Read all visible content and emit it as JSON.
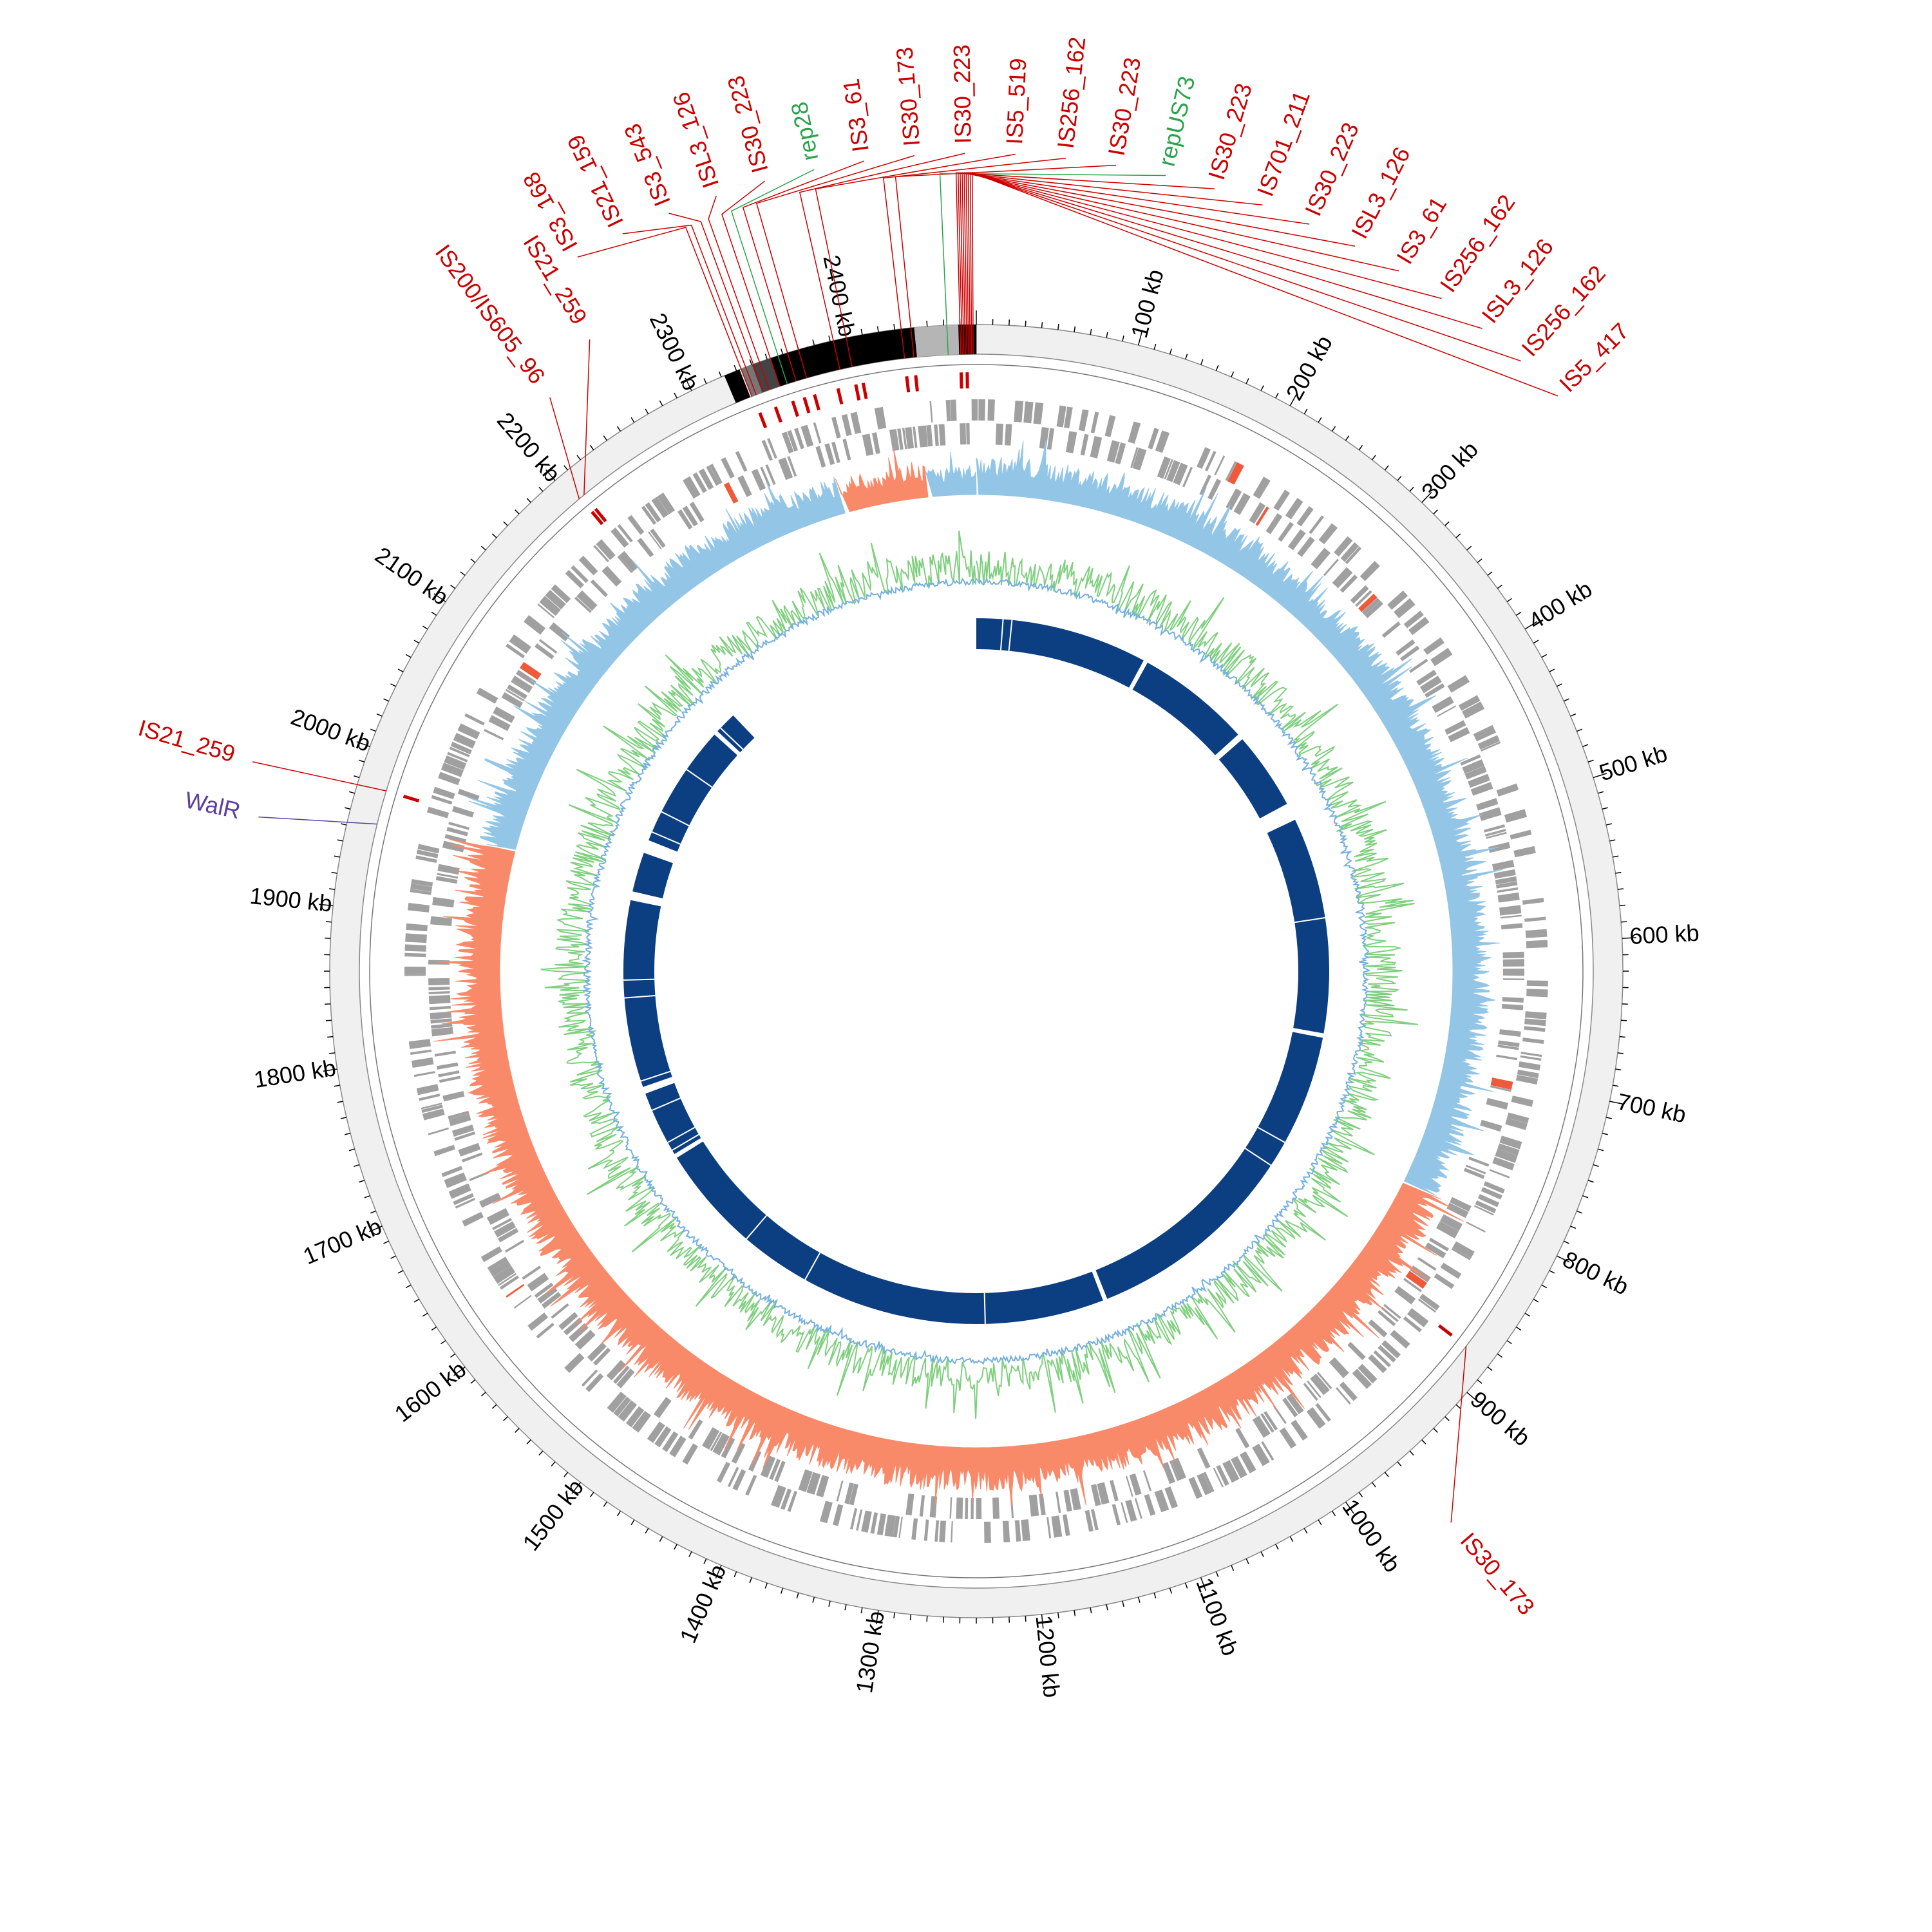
{
  "figure": {
    "type": "circular-genome-map",
    "genome_length_kb": 2480
  },
  "colors": {
    "is_label": "#cc0000",
    "rep_label": "#2aa34a",
    "walr_label": "#5b3f9e",
    "backbone_fill": "#f0f0f0",
    "cds_gray": "#a0a0a0",
    "cds_highlight": "#ef5a3a",
    "gc_skew_pos": "#93c6e6",
    "gc_skew_neg": "#f88a6a",
    "gc_content_pos": "#7fcf7f",
    "gc_content_neg": "#73afe0",
    "blast_ring": "#0b3f82",
    "black": "#000000"
  },
  "scale": {
    "ticks_kb": [
      100,
      200,
      300,
      400,
      500,
      600,
      700,
      800,
      900,
      1000,
      1100,
      1200,
      1300,
      1400,
      1500,
      1600,
      1700,
      1800,
      1900,
      2000,
      2100,
      2200,
      2300,
      2400
    ],
    "unit": "kb"
  },
  "features": [
    {
      "label": "IS3_168",
      "kb": 2333,
      "kind": "is"
    },
    {
      "label": "IS21_159",
      "kb": 2336,
      "kind": "is"
    },
    {
      "label": "IS3_543",
      "kb": 2341,
      "kind": "is"
    },
    {
      "label": "ISL3_126",
      "kb": 2345,
      "kind": "is"
    },
    {
      "label": "IS30_223",
      "kb": 2352,
      "kind": "is"
    },
    {
      "label": "rep28",
      "kb": 2357,
      "kind": "rep"
    },
    {
      "label": "IS3_61",
      "kb": 2363,
      "kind": "is"
    },
    {
      "label": "IS30_173",
      "kb": 2370,
      "kind": "is"
    },
    {
      "label": "IS30_223",
      "kb": 2392,
      "kind": "is"
    },
    {
      "label": "IS5_519",
      "kb": 2400,
      "kind": "is"
    },
    {
      "label": "IS256_162",
      "kb": 2434,
      "kind": "is"
    },
    {
      "label": "IS30_223",
      "kb": 2440,
      "kind": "is"
    },
    {
      "label": "repUS73",
      "kb": 2462,
      "kind": "rep"
    },
    {
      "label": "IS30_223",
      "kb": 2470,
      "kind": "is"
    },
    {
      "label": "IS701_211",
      "kb": 2471,
      "kind": "is"
    },
    {
      "label": "IS30_223",
      "kb": 2472,
      "kind": "is"
    },
    {
      "label": "ISL3_126",
      "kb": 2473,
      "kind": "is"
    },
    {
      "label": "IS3_61",
      "kb": 2474,
      "kind": "is"
    },
    {
      "label": "IS256_162",
      "kb": 2475,
      "kind": "is"
    },
    {
      "label": "ISL3_126",
      "kb": 2476,
      "kind": "is"
    },
    {
      "label": "IS256_162",
      "kb": 2477,
      "kind": "is"
    },
    {
      "label": "IS5_417",
      "kb": 2478,
      "kind": "is"
    },
    {
      "label": "IS21_259",
      "kb": 2208,
      "kind": "is"
    },
    {
      "label": "IS200/IS605_96",
      "kb": 2204,
      "kind": "is"
    },
    {
      "label": "IS21_259",
      "kb": 1977,
      "kind": "is"
    },
    {
      "label": "WalR",
      "kb": 1955,
      "kind": "walr"
    },
    {
      "label": "IS30_173",
      "kb": 878,
      "kind": "is"
    }
  ],
  "labels_text": [
    "100 kb",
    "200 kb",
    "300 kb",
    "400 kb",
    "500 kb",
    "600 kb",
    "700 kb",
    "800 kb",
    "900 kb",
    "1000 kb",
    "1100 kb",
    "1200 kb",
    "1300 kb",
    "1400 kb",
    "1500 kb",
    "1600 kb",
    "1700 kb",
    "1800 kb",
    "1900 kb",
    "2000 kb",
    "2100 kb",
    "2200 kb",
    "2300 kb",
    "2400 kb"
  ]
}
